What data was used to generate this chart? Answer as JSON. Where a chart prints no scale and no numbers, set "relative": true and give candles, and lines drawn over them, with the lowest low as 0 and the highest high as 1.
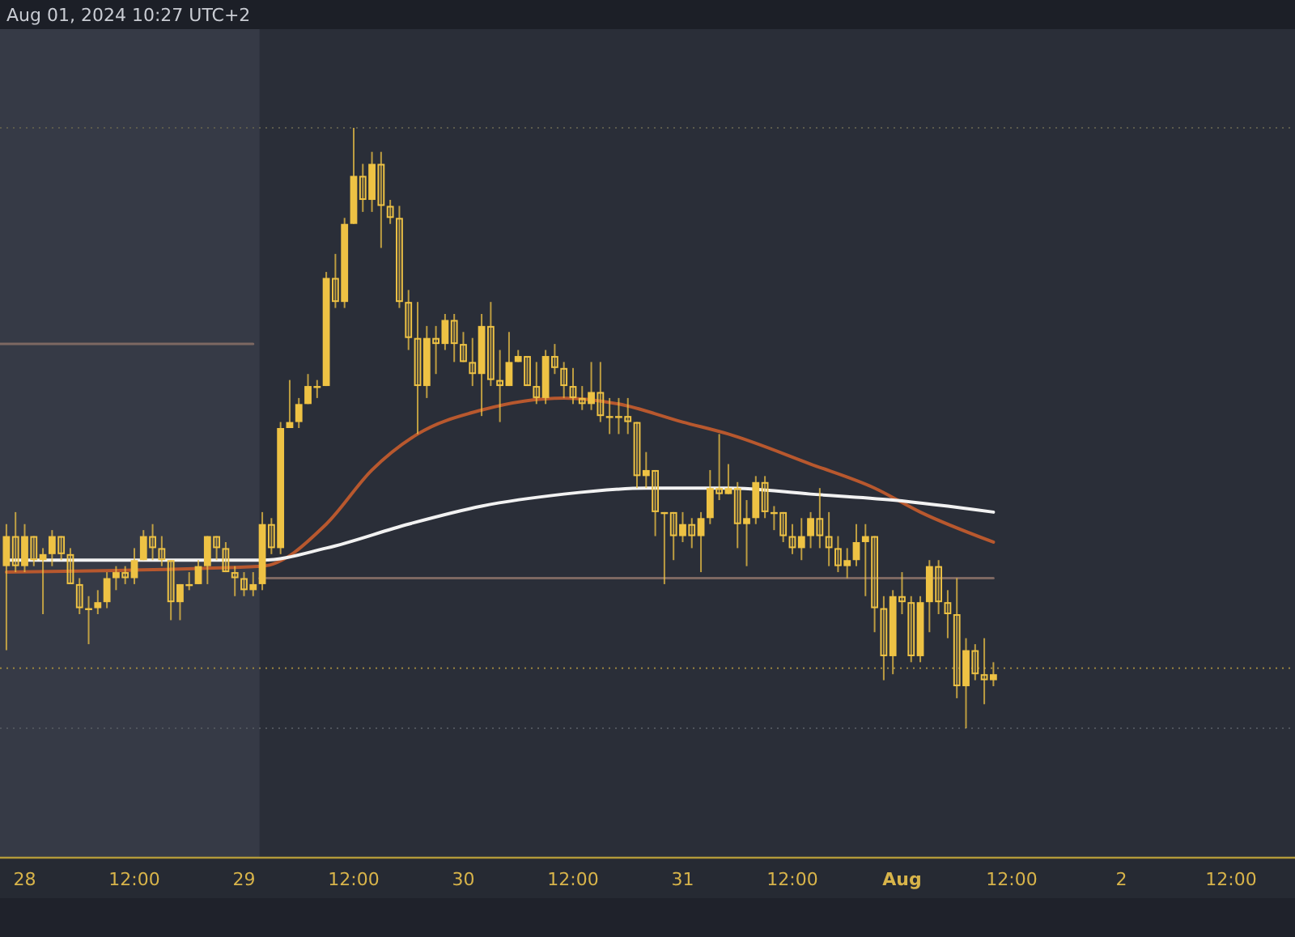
{
  "chart_data": {
    "type": "candlestick",
    "relative": true,
    "color": "#eec244",
    "annotations": [
      "Aug 01, 2024 10:27 UTC+2"
    ],
    "xlim": [
      "2024-07-27T21:18",
      "2024-08-02T19:00"
    ],
    "xticks": [
      {
        "value": "2024-07-28",
        "label": "28"
      },
      {
        "value": "2024-07-28T12:00",
        "label": "12:00"
      },
      {
        "value": "2024-07-29",
        "label": "29"
      },
      {
        "value": "2024-07-29T12:00",
        "label": "12:00"
      },
      {
        "value": "2024-07-30",
        "label": "30"
      },
      {
        "value": "2024-07-30T12:00",
        "label": "12:00"
      },
      {
        "value": "2024-07-31",
        "label": "31"
      },
      {
        "value": "2024-07-31T12:00",
        "label": "12:00"
      },
      {
        "value": "2024-08-01",
        "label": "Aug"
      },
      {
        "value": "2024-08-01T12:00",
        "label": "12:00"
      },
      {
        "value": "2024-08-02",
        "label": "2"
      },
      {
        "value": "2024-08-02T12:00",
        "label": "12:00"
      }
    ],
    "x": [
      "2024-07-27T22:00",
      "2024-07-27T23:00",
      "2024-07-28T00:00",
      "2024-07-28T01:00",
      "2024-07-28T02:00",
      "2024-07-28T03:00",
      "2024-07-28T04:00",
      "2024-07-28T05:00",
      "2024-07-28T06:00",
      "2024-07-28T07:00",
      "2024-07-28T08:00",
      "2024-07-28T09:00",
      "2024-07-28T10:00",
      "2024-07-28T11:00",
      "2024-07-28T12:00",
      "2024-07-28T13:00",
      "2024-07-28T14:00",
      "2024-07-28T15:00",
      "2024-07-28T16:00",
      "2024-07-28T17:00",
      "2024-07-28T18:00",
      "2024-07-28T19:00",
      "2024-07-28T20:00",
      "2024-07-28T21:00",
      "2024-07-28T22:00",
      "2024-07-28T23:00",
      "2024-07-29T00:00",
      "2024-07-29T01:00",
      "2024-07-29T02:00",
      "2024-07-29T03:00",
      "2024-07-29T04:00",
      "2024-07-29T05:00",
      "2024-07-29T06:00",
      "2024-07-29T07:00",
      "2024-07-29T08:00",
      "2024-07-29T09:00",
      "2024-07-29T10:00",
      "2024-07-29T11:00",
      "2024-07-29T12:00",
      "2024-07-29T13:00",
      "2024-07-29T14:00",
      "2024-07-29T15:00",
      "2024-07-29T16:00",
      "2024-07-29T17:00",
      "2024-07-29T18:00",
      "2024-07-29T19:00",
      "2024-07-29T20:00",
      "2024-07-29T21:00",
      "2024-07-29T22:00",
      "2024-07-29T23:00",
      "2024-07-30T00:00",
      "2024-07-30T01:00",
      "2024-07-30T02:00",
      "2024-07-30T03:00",
      "2024-07-30T04:00",
      "2024-07-30T05:00",
      "2024-07-30T06:00",
      "2024-07-30T07:00",
      "2024-07-30T08:00",
      "2024-07-30T09:00",
      "2024-07-30T10:00",
      "2024-07-30T11:00",
      "2024-07-30T12:00",
      "2024-07-30T13:00",
      "2024-07-30T14:00",
      "2024-07-30T15:00",
      "2024-07-30T16:00",
      "2024-07-30T17:00",
      "2024-07-30T18:00",
      "2024-07-30T19:00",
      "2024-07-30T20:00",
      "2024-07-30T21:00",
      "2024-07-30T22:00",
      "2024-07-30T23:00",
      "2024-07-31T00:00",
      "2024-07-31T01:00",
      "2024-07-31T02:00",
      "2024-07-31T03:00",
      "2024-07-31T04:00",
      "2024-07-31T05:00",
      "2024-07-31T06:00",
      "2024-07-31T07:00",
      "2024-07-31T08:00",
      "2024-07-31T09:00",
      "2024-07-31T10:00",
      "2024-07-31T11:00",
      "2024-07-31T12:00",
      "2024-07-31T13:00",
      "2024-07-31T14:00",
      "2024-07-31T15:00",
      "2024-07-31T16:00",
      "2024-07-31T17:00",
      "2024-07-31T18:00",
      "2024-07-31T19:00",
      "2024-07-31T20:00",
      "2024-07-31T21:00",
      "2024-07-31T22:00",
      "2024-07-31T23:00",
      "2024-08-01T00:00",
      "2024-08-01T01:00",
      "2024-08-01T02:00",
      "2024-08-01T03:00",
      "2024-08-01T04:00",
      "2024-08-01T05:00",
      "2024-08-01T06:00",
      "2024-08-01T07:00",
      "2024-08-01T08:00",
      "2024-08-01T09:00",
      "2024-08-01T10:00"
    ],
    "ohlc": [
      [
        0.27,
        0.34,
        0.13,
        0.32
      ],
      [
        0.32,
        0.36,
        0.26,
        0.27
      ],
      [
        0.27,
        0.34,
        0.26,
        0.32
      ],
      [
        0.32,
        0.32,
        0.27,
        0.28
      ],
      [
        0.28,
        0.3,
        0.19,
        0.29
      ],
      [
        0.29,
        0.33,
        0.27,
        0.32
      ],
      [
        0.32,
        0.32,
        0.28,
        0.29
      ],
      [
        0.29,
        0.3,
        0.24,
        0.24
      ],
      [
        0.24,
        0.25,
        0.19,
        0.2
      ],
      [
        0.2,
        0.22,
        0.14,
        0.2
      ],
      [
        0.2,
        0.23,
        0.19,
        0.21
      ],
      [
        0.21,
        0.26,
        0.2,
        0.25
      ],
      [
        0.25,
        0.27,
        0.23,
        0.26
      ],
      [
        0.26,
        0.27,
        0.24,
        0.25
      ],
      [
        0.25,
        0.3,
        0.24,
        0.28
      ],
      [
        0.28,
        0.33,
        0.28,
        0.32
      ],
      [
        0.32,
        0.34,
        0.28,
        0.3
      ],
      [
        0.3,
        0.32,
        0.27,
        0.28
      ],
      [
        0.28,
        0.28,
        0.18,
        0.21
      ],
      [
        0.21,
        0.24,
        0.18,
        0.24
      ],
      [
        0.24,
        0.26,
        0.23,
        0.24
      ],
      [
        0.24,
        0.28,
        0.24,
        0.27
      ],
      [
        0.27,
        0.32,
        0.24,
        0.32
      ],
      [
        0.32,
        0.32,
        0.28,
        0.3
      ],
      [
        0.3,
        0.31,
        0.26,
        0.26
      ],
      [
        0.26,
        0.27,
        0.22,
        0.25
      ],
      [
        0.25,
        0.26,
        0.22,
        0.23
      ],
      [
        0.23,
        0.26,
        0.22,
        0.24
      ],
      [
        0.24,
        0.36,
        0.23,
        0.34
      ],
      [
        0.34,
        0.35,
        0.29,
        0.3
      ],
      [
        0.3,
        0.51,
        0.29,
        0.5
      ],
      [
        0.5,
        0.58,
        0.5,
        0.51
      ],
      [
        0.51,
        0.55,
        0.5,
        0.54
      ],
      [
        0.54,
        0.59,
        0.54,
        0.57
      ],
      [
        0.57,
        0.58,
        0.55,
        0.57
      ],
      [
        0.57,
        0.76,
        0.57,
        0.75
      ],
      [
        0.75,
        0.79,
        0.7,
        0.71
      ],
      [
        0.71,
        0.85,
        0.7,
        0.84
      ],
      [
        0.84,
        1.0,
        0.84,
        0.92
      ],
      [
        0.92,
        0.94,
        0.86,
        0.88
      ],
      [
        0.88,
        0.96,
        0.86,
        0.94
      ],
      [
        0.94,
        0.96,
        0.8,
        0.87
      ],
      [
        0.87,
        0.88,
        0.84,
        0.85
      ],
      [
        0.85,
        0.87,
        0.7,
        0.71
      ],
      [
        0.71,
        0.73,
        0.63,
        0.65
      ],
      [
        0.65,
        0.71,
        0.49,
        0.57
      ],
      [
        0.57,
        0.67,
        0.55,
        0.65
      ],
      [
        0.65,
        0.67,
        0.59,
        0.64
      ],
      [
        0.64,
        0.69,
        0.63,
        0.68
      ],
      [
        0.68,
        0.69,
        0.61,
        0.64
      ],
      [
        0.64,
        0.66,
        0.61,
        0.61
      ],
      [
        0.61,
        0.65,
        0.57,
        0.59
      ],
      [
        0.59,
        0.69,
        0.52,
        0.67
      ],
      [
        0.67,
        0.71,
        0.57,
        0.58
      ],
      [
        0.58,
        0.63,
        0.51,
        0.57
      ],
      [
        0.57,
        0.66,
        0.57,
        0.61
      ],
      [
        0.61,
        0.63,
        0.61,
        0.62
      ],
      [
        0.62,
        0.62,
        0.57,
        0.57
      ],
      [
        0.57,
        0.61,
        0.54,
        0.55
      ],
      [
        0.55,
        0.63,
        0.54,
        0.62
      ],
      [
        0.62,
        0.64,
        0.59,
        0.6
      ],
      [
        0.6,
        0.61,
        0.55,
        0.57
      ],
      [
        0.57,
        0.6,
        0.54,
        0.55
      ],
      [
        0.55,
        0.57,
        0.53,
        0.54
      ],
      [
        0.54,
        0.61,
        0.53,
        0.56
      ],
      [
        0.56,
        0.61,
        0.51,
        0.52
      ],
      [
        0.52,
        0.55,
        0.49,
        0.52
      ],
      [
        0.52,
        0.55,
        0.49,
        0.52
      ],
      [
        0.52,
        0.55,
        0.49,
        0.51
      ],
      [
        0.51,
        0.51,
        0.4,
        0.42
      ],
      [
        0.42,
        0.46,
        0.4,
        0.43
      ],
      [
        0.43,
        0.43,
        0.32,
        0.36
      ],
      [
        0.36,
        0.36,
        0.24,
        0.36
      ],
      [
        0.36,
        0.36,
        0.28,
        0.32
      ],
      [
        0.32,
        0.36,
        0.31,
        0.34
      ],
      [
        0.34,
        0.35,
        0.3,
        0.32
      ],
      [
        0.32,
        0.36,
        0.26,
        0.35
      ],
      [
        0.35,
        0.43,
        0.34,
        0.4
      ],
      [
        0.4,
        0.49,
        0.38,
        0.39
      ],
      [
        0.39,
        0.44,
        0.39,
        0.4
      ],
      [
        0.4,
        0.41,
        0.3,
        0.34
      ],
      [
        0.34,
        0.38,
        0.27,
        0.35
      ],
      [
        0.35,
        0.42,
        0.34,
        0.41
      ],
      [
        0.41,
        0.42,
        0.35,
        0.36
      ],
      [
        0.36,
        0.37,
        0.33,
        0.36
      ],
      [
        0.36,
        0.36,
        0.31,
        0.32
      ],
      [
        0.32,
        0.34,
        0.29,
        0.3
      ],
      [
        0.3,
        0.35,
        0.28,
        0.32
      ],
      [
        0.32,
        0.36,
        0.3,
        0.35
      ],
      [
        0.35,
        0.4,
        0.3,
        0.32
      ],
      [
        0.32,
        0.36,
        0.27,
        0.3
      ],
      [
        0.3,
        0.32,
        0.26,
        0.27
      ],
      [
        0.27,
        0.3,
        0.25,
        0.28
      ],
      [
        0.28,
        0.34,
        0.27,
        0.31
      ],
      [
        0.31,
        0.34,
        0.22,
        0.32
      ],
      [
        0.32,
        0.32,
        0.16,
        0.2
      ],
      [
        0.2,
        0.22,
        0.08,
        0.12
      ],
      [
        0.12,
        0.23,
        0.09,
        0.22
      ],
      [
        0.22,
        0.26,
        0.19,
        0.21
      ],
      [
        0.21,
        0.22,
        0.11,
        0.12
      ],
      [
        0.12,
        0.22,
        0.11,
        0.21
      ],
      [
        0.21,
        0.28,
        0.16,
        0.27
      ],
      [
        0.27,
        0.28,
        0.19,
        0.21
      ],
      [
        0.21,
        0.23,
        0.15,
        0.19
      ],
      [
        0.19,
        0.25,
        0.05,
        0.07
      ],
      [
        0.07,
        0.15,
        0.0,
        0.13
      ],
      [
        0.13,
        0.14,
        0.08,
        0.09
      ],
      [
        0.09,
        0.15,
        0.04,
        0.08
      ],
      [
        0.08,
        0.11,
        0.07,
        0.09
      ]
    ],
    "series": [
      {
        "type": "line",
        "color": "#b8582e",
        "x": [
          "2024-07-27T22:00",
          "2024-07-29T02:00",
          "2024-07-29T09:00",
          "2024-07-29T14:00",
          "2024-07-29T19:00",
          "2024-07-30T02:00",
          "2024-07-30T11:00",
          "2024-07-30T17:00",
          "2024-07-31T00:00",
          "2024-07-31T05:00",
          "2024-07-31T14:00",
          "2024-07-31T21:00",
          "2024-08-01T02:00",
          "2024-08-01T10:00"
        ],
        "values": [
          0.26,
          0.27,
          0.34,
          0.43,
          0.49,
          0.53,
          0.55,
          0.54,
          0.51,
          0.49,
          0.44,
          0.4,
          0.36,
          0.31
        ]
      },
      {
        "type": "line",
        "color": "#f2f2f2",
        "x": [
          "2024-07-27T22:00",
          "2024-07-29T02:00",
          "2024-07-29T09:00",
          "2024-07-29T18:00",
          "2024-07-30T02:00",
          "2024-07-30T11:00",
          "2024-07-30T20:00",
          "2024-07-31T05:00",
          "2024-07-31T14:00",
          "2024-07-31T23:00",
          "2024-08-01T10:00"
        ],
        "values": [
          0.28,
          0.28,
          0.3,
          0.34,
          0.37,
          0.39,
          0.4,
          0.4,
          0.39,
          0.38,
          0.36
        ]
      },
      {
        "type": "line",
        "color": "#7d6862",
        "x": [
          "2024-07-27T21:18",
          "2024-07-29T01:00"
        ],
        "values": [
          0.64,
          0.64
        ]
      },
      {
        "type": "line",
        "color": "#7d6862",
        "x": [
          "2024-07-29T01:42",
          "2024-08-01T10:00"
        ],
        "values": [
          0.25,
          0.25
        ]
      }
    ],
    "ref_lines": [
      {
        "axis": "y",
        "value": 1,
        "color": "#5c5b4c",
        "line_style": "dotted"
      },
      {
        "axis": "y",
        "value": 0.1,
        "color": "#9a8540",
        "line_style": "dotted"
      },
      {
        "axis": "y",
        "value": 0,
        "color": "#4f545c",
        "line_style": "dotted"
      }
    ],
    "bands": [
      {
        "axis": "x",
        "from": "2024-07-27T21:18",
        "to": "2024-07-29T01:42",
        "color": "#363a46"
      }
    ]
  }
}
